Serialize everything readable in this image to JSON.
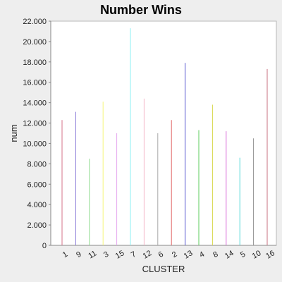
{
  "chart_data": {
    "type": "bar",
    "title": "Number Wins",
    "xlabel": "CLUSTER",
    "ylabel": "num",
    "ylim": [
      0,
      22000
    ],
    "yticks": [
      {
        "value": 0,
        "label": "0"
      },
      {
        "value": 2000,
        "label": "2.000"
      },
      {
        "value": 4000,
        "label": "4.000"
      },
      {
        "value": 6000,
        "label": "6.000"
      },
      {
        "value": 8000,
        "label": "8.000"
      },
      {
        "value": 10000,
        "label": "10.000"
      },
      {
        "value": 12000,
        "label": "12.000"
      },
      {
        "value": 14000,
        "label": "14.000"
      },
      {
        "value": 16000,
        "label": "16.000"
      },
      {
        "value": 18000,
        "label": "18.000"
      },
      {
        "value": 20000,
        "label": "20.000"
      },
      {
        "value": 22000,
        "label": "22.000"
      }
    ],
    "grid": false,
    "categories": [
      "1",
      "9",
      "11",
      "3",
      "15",
      "7",
      "12",
      "6",
      "2",
      "13",
      "4",
      "8",
      "14",
      "5",
      "10",
      "16"
    ],
    "values": [
      12300,
      13100,
      8500,
      14100,
      11000,
      21300,
      14400,
      11000,
      12300,
      17900,
      11300,
      13800,
      11200,
      8600,
      10500,
      17300
    ],
    "colors": [
      "#d4708a",
      "#8a7ad8",
      "#8fdc8f",
      "#f4f47a",
      "#e6a8ee",
      "#8ef0f4",
      "#f4b8c8",
      "#a8a8a8",
      "#e06868",
      "#5050d0",
      "#5ccc5c",
      "#d8d84c",
      "#d870d8",
      "#58d8d8",
      "#909090",
      "#c87080"
    ]
  }
}
